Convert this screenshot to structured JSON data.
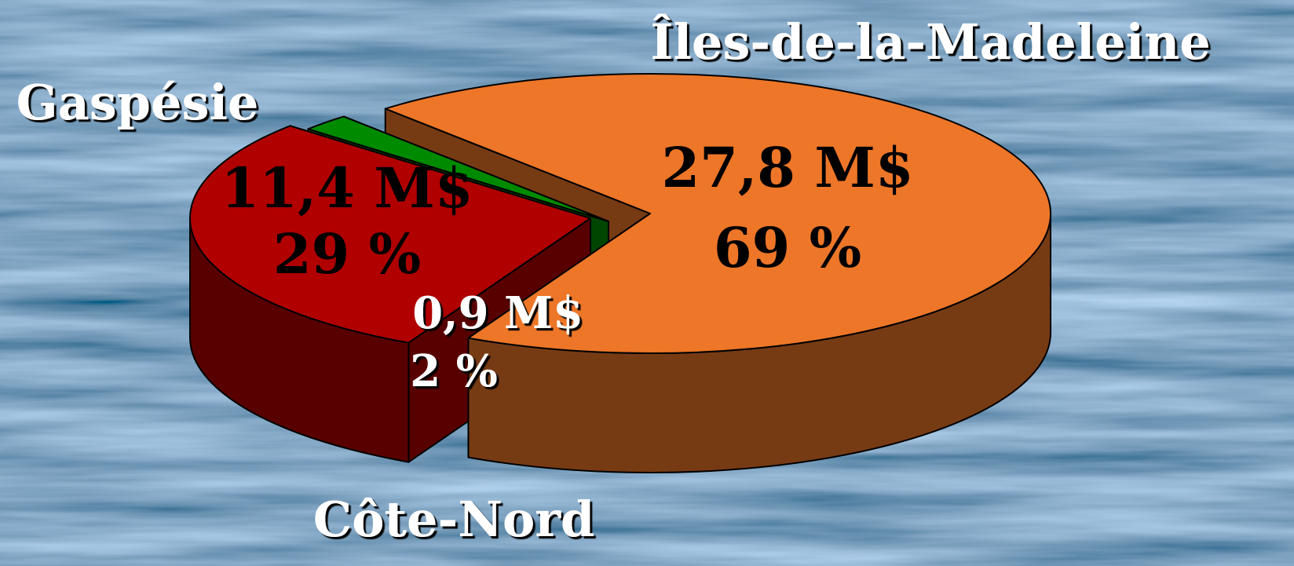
{
  "chart_data": {
    "type": "pie3d",
    "categories": [
      "Îles-de-la-Madeleine",
      "Gaspésie",
      "Côte-Nord"
    ],
    "values": [
      69,
      29,
      2
    ],
    "value_labels": [
      "69 %",
      "29 %",
      "2 %"
    ],
    "amount_labels": [
      "27,8 M$",
      "11,4 M$",
      "0,9 M$"
    ],
    "colors": [
      "#ed7628",
      "#b00000",
      "#008a00"
    ]
  }
}
